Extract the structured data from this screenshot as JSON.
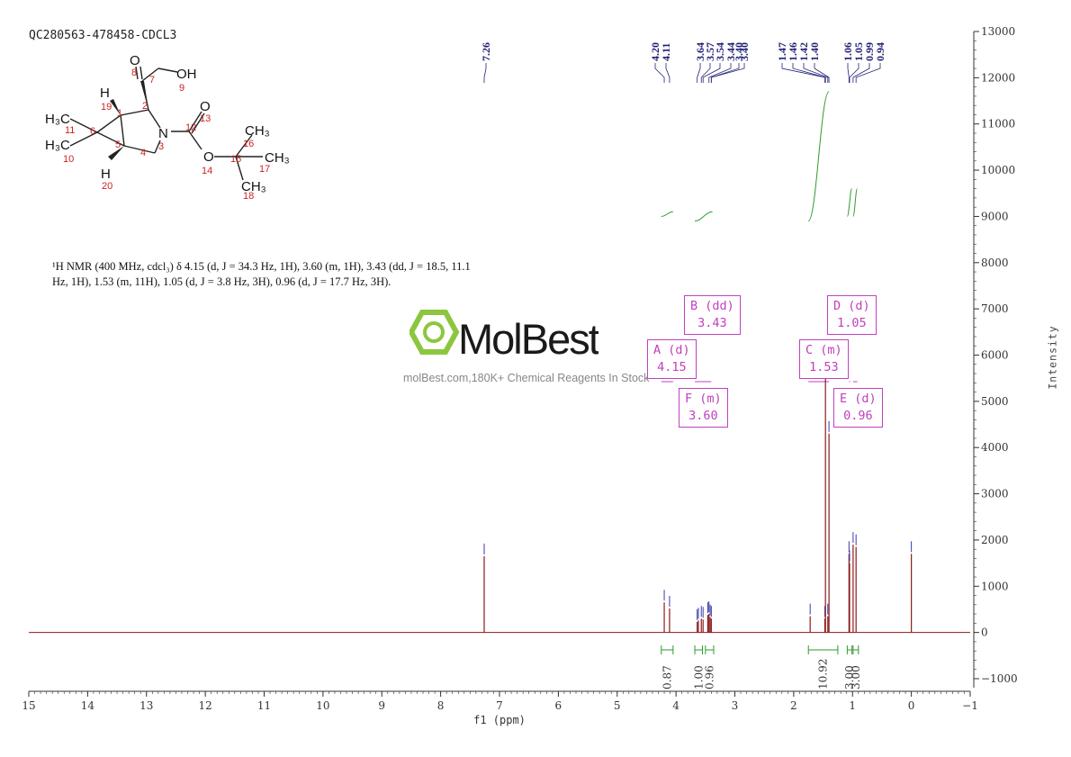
{
  "sample_id": "QC280563-478458-CDCL3",
  "nmr_summary_lines": [
    "¹H NMR (400 MHz, cdcl₃) δ 4.15 (d, J = 34.3 Hz, 1H), 3.60 (m, 1H), 3.43 (dd, J = 18.5, 11.1",
    "Hz, 1H), 1.53 (m, 11H), 1.05 (d, J = 3.8 Hz, 3H), 0.96 (d, J = 17.7 Hz, 3H)."
  ],
  "watermark": {
    "brand": "MolBest",
    "tagline": "molBest.com,180K+ Chemical Reagents In Stock"
  },
  "multiplet_labels": [
    {
      "letter": "A",
      "type": "d",
      "shift": "4.15"
    },
    {
      "letter": "B",
      "type": "dd",
      "shift": "3.43"
    },
    {
      "letter": "C",
      "type": "m",
      "shift": "1.53"
    },
    {
      "letter": "D",
      "type": "d",
      "shift": "1.05"
    },
    {
      "letter": "E",
      "type": "d",
      "shift": "0.96"
    },
    {
      "letter": "F",
      "type": "m",
      "shift": "3.60"
    }
  ],
  "colors": {
    "spectrum": "#8b1a1a",
    "peak_ticks": "#3a3aaa",
    "integral": "#2e9a2e",
    "labels": "#c040c0",
    "axis": "#333333",
    "peak_labels": "#222277"
  },
  "molecule": {
    "atoms": [
      "O",
      "OH",
      "H",
      "H₃C",
      "H₃C",
      "N",
      "O",
      "CH₃",
      "CH₃",
      "CH₃",
      "O",
      "H"
    ],
    "numbers": [
      "8",
      "9",
      "19",
      "1",
      "2",
      "7",
      "13",
      "11",
      "6",
      "3",
      "12",
      "16",
      "15",
      "17",
      "10",
      "5",
      "4",
      "14",
      "20",
      "18"
    ]
  },
  "chart_data": {
    "type": "line",
    "xlabel": "f1 (ppm)",
    "ylabel": "Intensity",
    "xlim": [
      15,
      -1
    ],
    "ylim": [
      -1000,
      13000
    ],
    "x_ticks": [
      15,
      14,
      13,
      12,
      11,
      10,
      9,
      8,
      7,
      6,
      5,
      4,
      3,
      2,
      1,
      0,
      -1
    ],
    "y_ticks": [
      -1000,
      0,
      1000,
      2000,
      3000,
      4000,
      5000,
      6000,
      7000,
      8000,
      9000,
      10000,
      11000,
      12000,
      13000
    ],
    "peak_labels": [
      "7.26",
      "4.20",
      "4.11",
      "3.64",
      "3.57",
      "3.54",
      "3.44",
      "3.40",
      "3.40",
      "1.47",
      "1.46",
      "1.42",
      "1.40",
      "1.06",
      "1.05",
      "0.99",
      "0.94"
    ],
    "peaks": [
      {
        "ppm": 7.26,
        "height": 1650
      },
      {
        "ppm": 4.2,
        "height": 650
      },
      {
        "ppm": 4.11,
        "height": 520
      },
      {
        "ppm": 3.64,
        "height": 230
      },
      {
        "ppm": 3.62,
        "height": 260
      },
      {
        "ppm": 3.57,
        "height": 300
      },
      {
        "ppm": 3.54,
        "height": 280
      },
      {
        "ppm": 3.46,
        "height": 380
      },
      {
        "ppm": 3.44,
        "height": 400
      },
      {
        "ppm": 3.42,
        "height": 330
      },
      {
        "ppm": 3.4,
        "height": 300
      },
      {
        "ppm": 1.72,
        "height": 350
      },
      {
        "ppm": 1.47,
        "height": 300
      },
      {
        "ppm": 1.46,
        "height": 5900
      },
      {
        "ppm": 1.42,
        "height": 350
      },
      {
        "ppm": 1.4,
        "height": 4300
      },
      {
        "ppm": 1.06,
        "height": 1700
      },
      {
        "ppm": 1.05,
        "height": 1500
      },
      {
        "ppm": 0.99,
        "height": 1900
      },
      {
        "ppm": 0.94,
        "height": 1850
      },
      {
        "ppm": 0.0,
        "height": 1700
      }
    ],
    "integrals": [
      {
        "from": 4.25,
        "to": 4.05,
        "value": "0.87"
      },
      {
        "from": 3.68,
        "to": 3.55,
        "value": "1.00"
      },
      {
        "from": 3.5,
        "to": 3.36,
        "value": "0.96"
      },
      {
        "from": 1.75,
        "to": 1.25,
        "value": "10.92"
      },
      {
        "from": 1.09,
        "to": 1.01,
        "value": "3.00"
      },
      {
        "from": 0.99,
        "to": 0.9,
        "value": "3.00"
      }
    ]
  }
}
